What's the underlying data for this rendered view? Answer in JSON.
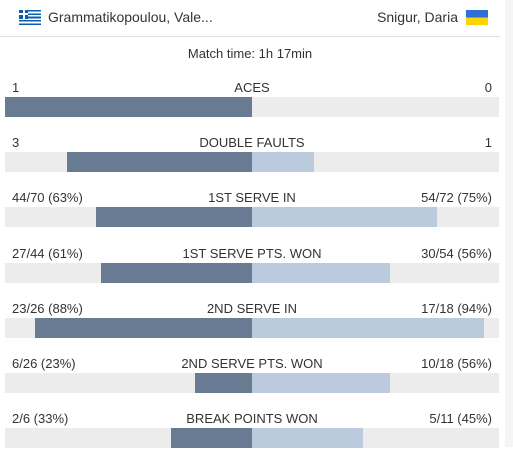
{
  "header": {
    "home": {
      "name": "Grammatikopoulou, Vale...",
      "flag": "greece-flag"
    },
    "away": {
      "name": "Snigur, Daria",
      "flag": "ukraine-flag"
    }
  },
  "match_time": "Match time: 1h 17min",
  "colors": {
    "home_bar": "#687b92",
    "away_bar": "#bccadd",
    "track": "#ececec"
  },
  "stats": [
    {
      "label": "ACES",
      "home": "1",
      "away": "0",
      "home_fill": 1.0,
      "away_fill": 0.0
    },
    {
      "label": "DOUBLE FAULTS",
      "home": "3",
      "away": "1",
      "home_fill": 0.75,
      "away_fill": 0.25
    },
    {
      "label": "1ST SERVE IN",
      "home": "44/70 (63%)",
      "away": "54/72 (75%)",
      "home_fill": 0.63,
      "away_fill": 0.75
    },
    {
      "label": "1ST SERVE PTS. WON",
      "home": "27/44 (61%)",
      "away": "30/54 (56%)",
      "home_fill": 0.61,
      "away_fill": 0.56
    },
    {
      "label": "2ND SERVE IN",
      "home": "23/26 (88%)",
      "away": "17/18 (94%)",
      "home_fill": 0.88,
      "away_fill": 0.94
    },
    {
      "label": "2ND SERVE PTS. WON",
      "home": "6/26 (23%)",
      "away": "10/18 (56%)",
      "home_fill": 0.23,
      "away_fill": 0.56
    },
    {
      "label": "BREAK POINTS WON",
      "home": "2/6 (33%)",
      "away": "5/11 (45%)",
      "home_fill": 0.33,
      "away_fill": 0.45
    }
  ]
}
